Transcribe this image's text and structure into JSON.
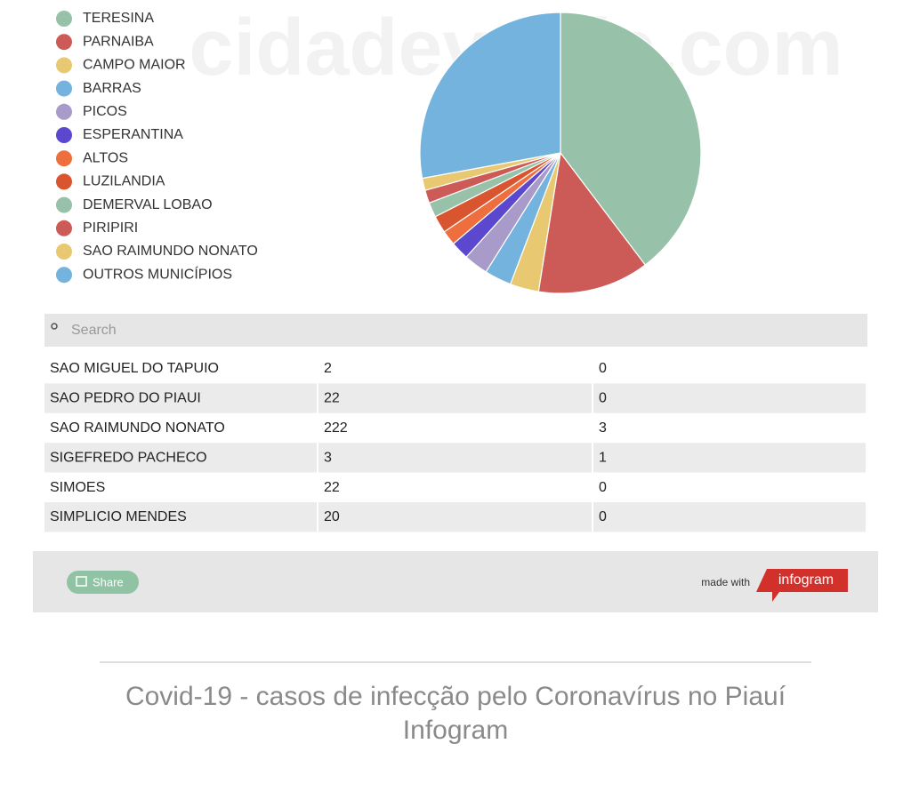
{
  "chart_data": {
    "type": "pie",
    "categories": [
      "TERESINA",
      "PARNAIBA",
      "CAMPO MAIOR",
      "BARRAS",
      "PICOS",
      "ESPERANTINA",
      "ALTOS",
      "LUZILANDIA",
      "DEMERVAL LOBAO",
      "PIRIPIRI",
      "SAO RAIMUNDO NONATO",
      "OUTROS MUNICÍPIOS"
    ],
    "values": [
      39.7,
      12.8,
      3.3,
      3.1,
      2.8,
      2.1,
      1.7,
      2.0,
      1.7,
      1.5,
      1.4,
      27.9
    ],
    "colors": [
      "#97c1a9",
      "#cc5b58",
      "#e8c972",
      "#74b3de",
      "#a99bc9",
      "#5b48cf",
      "#ee6f3d",
      "#d9552f",
      "#97c1a9",
      "#cc5b58",
      "#e8c972",
      "#74b3de"
    ],
    "legend": "left"
  },
  "watermark": "cidadeverde.com",
  "search": {
    "placeholder": "Search"
  },
  "table": {
    "rows": [
      [
        "SAO MIGUEL DO TAPUIO",
        2,
        0
      ],
      [
        "SAO PEDRO DO PIAUI",
        22,
        0
      ],
      [
        "SAO RAIMUNDO NONATO",
        222,
        3
      ],
      [
        "SIGEFREDO PACHECO",
        3,
        1
      ],
      [
        "SIMOES",
        22,
        0
      ],
      [
        "SIMPLICIO MENDES",
        20,
        0
      ]
    ]
  },
  "footer": {
    "share": "Share",
    "made_with": "made with",
    "brand": "infogram"
  },
  "caption": {
    "line1": "Covid-19 - casos de infecção pelo Coronavírus no Piauí",
    "line2": "Infogram"
  }
}
